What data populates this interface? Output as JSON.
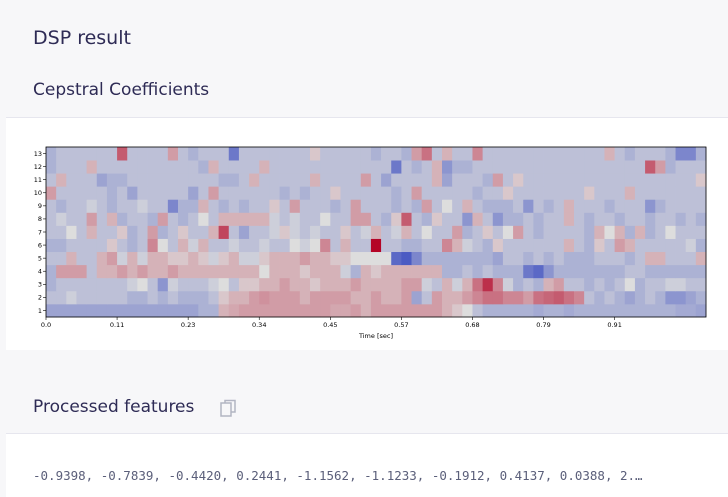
{
  "header": {
    "title": "DSP result"
  },
  "cepstral": {
    "title": "Cepstral Coefficients"
  },
  "processed": {
    "title": "Processed features",
    "copy_icon": "copy-icon",
    "values_text": "-0.9398, -0.7839, -0.4420, 0.2441, -1.1562, -1.1233, -0.1912, 0.4137, 0.0388, 2.…"
  },
  "colors": {
    "low": "#3b4cc0",
    "mid": "#dddddd",
    "high": "#b40426",
    "title": "#2e2b55"
  },
  "chart_data": {
    "type": "heatmap",
    "xlabel": "Time [sec]",
    "xticks": [
      "0.0",
      "0.11",
      "0.23",
      "0.34",
      "0.45",
      "0.57",
      "0.68",
      "0.79",
      "0.91"
    ],
    "yticks": [
      "1",
      "2",
      "3",
      "4",
      "5",
      "6",
      "7",
      "8",
      "9",
      "10",
      "11",
      "12",
      "13"
    ],
    "value_range": [
      -1,
      1
    ],
    "rows": [
      [
        -0.4,
        -0.4,
        -0.4,
        -0.4,
        -0.4,
        -0.4,
        -0.4,
        -0.4,
        -0.4,
        -0.4,
        -0.4,
        -0.4,
        -0.4,
        -0.4,
        -0.4,
        -0.3,
        -0.3,
        0.2,
        0.25,
        0.3,
        0.3,
        0.3,
        0.3,
        0.3,
        0.3,
        0.3,
        0.3,
        0.3,
        0.25,
        0.25,
        0.3,
        0.2,
        0.3,
        0.3,
        0.3,
        0.3,
        0.3,
        0.3,
        0.3,
        0.2,
        0.1,
        0.0,
        -0.2,
        -0.3,
        -0.3,
        -0.3,
        -0.3,
        -0.3,
        -0.35,
        -0.3,
        -0.3,
        -0.35,
        -0.3,
        -0.3,
        -0.3,
        -0.3,
        -0.3,
        -0.3,
        -0.3,
        -0.3,
        -0.3,
        -0.3,
        -0.35,
        -0.35,
        -0.4
      ],
      [
        -0.2,
        -0.2,
        -0.1,
        -0.2,
        -0.2,
        -0.2,
        -0.2,
        -0.2,
        -0.3,
        -0.3,
        -0.2,
        -0.3,
        -0.2,
        -0.3,
        -0.3,
        -0.3,
        -0.2,
        0.1,
        0.2,
        0.2,
        0.3,
        0.35,
        0.3,
        0.3,
        0.3,
        0.2,
        0.3,
        0.3,
        0.3,
        0.3,
        0.2,
        0.2,
        0.3,
        0.2,
        0.2,
        0.3,
        -0.4,
        -0.2,
        0.3,
        0.2,
        0.2,
        0.3,
        0.4,
        0.5,
        0.5,
        0.4,
        0.4,
        0.3,
        0.5,
        0.55,
        0.6,
        0.5,
        0.4,
        -0.2,
        -0.3,
        -0.2,
        -0.3,
        -0.4,
        -0.3,
        -0.2,
        -0.3,
        -0.5,
        -0.5,
        -0.4,
        -0.3
      ],
      [
        -0.3,
        -0.2,
        -0.2,
        -0.2,
        -0.2,
        -0.2,
        -0.2,
        -0.2,
        -0.1,
        0.0,
        -0.2,
        -0.5,
        -0.1,
        -0.2,
        -0.2,
        -0.2,
        -0.1,
        0.0,
        -0.2,
        0.1,
        0.1,
        0.2,
        0.2,
        0.3,
        0.2,
        0.2,
        0.1,
        0.2,
        0.2,
        0.2,
        0.3,
        0.2,
        0.2,
        0.2,
        0.2,
        0.3,
        0.3,
        -0.1,
        -0.2,
        0.2,
        -0.1,
        0.2,
        0.5,
        0.8,
        0.4,
        -0.1,
        -0.3,
        -0.2,
        -0.3,
        0.2,
        0.3,
        -0.2,
        -0.2,
        -0.3,
        -0.2,
        -0.3,
        -0.2,
        0.0,
        -0.3,
        -0.2,
        -0.2,
        -0.1,
        -0.1,
        -0.2,
        -0.2
      ],
      [
        -0.3,
        0.3,
        0.3,
        0.3,
        -0.2,
        0.2,
        0.2,
        0.3,
        0.2,
        0.3,
        0.2,
        0.2,
        0.3,
        0.2,
        0.2,
        0.2,
        0.2,
        0.2,
        0.2,
        0.2,
        0.2,
        0.0,
        0.2,
        0.2,
        0.2,
        0.1,
        0.2,
        0.2,
        0.2,
        -0.1,
        -0.3,
        0.2,
        0.1,
        0.2,
        0.2,
        0.2,
        0.2,
        0.2,
        0.2,
        -0.3,
        -0.3,
        -0.2,
        -0.3,
        -0.2,
        -0.3,
        -0.3,
        -0.3,
        -0.7,
        -0.8,
        -0.5,
        -0.3,
        -0.3,
        -0.3,
        -0.3,
        -0.3,
        -0.3,
        -0.3,
        -0.2,
        -0.2,
        -0.3,
        -0.3,
        -0.3,
        -0.3,
        -0.3,
        -0.3
      ],
      [
        -0.2,
        -0.2,
        0.2,
        -0.2,
        -0.2,
        0.2,
        0.3,
        -0.1,
        0.2,
        -0.1,
        0.2,
        0.2,
        0.1,
        0.1,
        0.2,
        0.1,
        -0.1,
        0.1,
        0.2,
        -0.1,
        -0.1,
        0.1,
        0.2,
        0.2,
        0.2,
        0.3,
        0.2,
        0.2,
        0.1,
        0.1,
        0.0,
        0.0,
        0.0,
        0.0,
        -0.8,
        -0.9,
        -0.6,
        -0.3,
        -0.3,
        -0.3,
        -0.3,
        -0.3,
        -0.3,
        -0.3,
        -0.4,
        -0.2,
        -0.2,
        -0.3,
        -0.2,
        -0.3,
        -0.2,
        -0.3,
        -0.3,
        -0.3,
        -0.2,
        -0.2,
        -0.2,
        -0.3,
        -0.2,
        0.2,
        0.2,
        -0.2,
        -0.2,
        -0.2,
        0.2
      ],
      [
        -0.3,
        -0.3,
        -0.2,
        -0.2,
        -0.2,
        -0.2,
        0.1,
        -0.2,
        -0.3,
        -0.2,
        0.4,
        0.0,
        -0.2,
        0.2,
        -0.1,
        0.2,
        -0.2,
        -0.2,
        -0.1,
        -0.2,
        -0.2,
        -0.1,
        -0.2,
        -0.2,
        0.0,
        -0.1,
        0.0,
        0.4,
        -0.2,
        0.2,
        -0.2,
        -0.2,
        1.0,
        -0.2,
        -0.2,
        -0.3,
        -0.3,
        -0.2,
        -0.2,
        0.4,
        0.2,
        -0.1,
        -0.2,
        -0.3,
        0.1,
        -0.2,
        -0.2,
        -0.2,
        -0.2,
        -0.2,
        -0.2,
        0.2,
        -0.2,
        -0.3,
        0.1,
        -0.2,
        0.3,
        0.2,
        -0.2,
        -0.2,
        -0.2,
        -0.2,
        -0.2,
        -0.1,
        -0.3
      ],
      [
        -0.2,
        -0.2,
        0.0,
        -0.2,
        0.2,
        -0.2,
        -0.2,
        0.1,
        -0.3,
        -0.2,
        0.3,
        -0.3,
        -0.2,
        0.1,
        -0.2,
        -0.2,
        0.2,
        0.7,
        -0.2,
        -0.4,
        -0.2,
        -0.2,
        -0.1,
        0.1,
        -0.1,
        -0.2,
        -0.1,
        -0.2,
        -0.2,
        0.1,
        -0.2,
        -0.1,
        0.2,
        -0.2,
        -0.1,
        0.2,
        -0.2,
        0.0,
        -0.2,
        -0.2,
        0.3,
        -0.3,
        -0.2,
        0.1,
        -0.2,
        0.0,
        0.3,
        -0.2,
        -0.3,
        -0.2,
        -0.2,
        -0.2,
        -0.2,
        -0.3,
        0.2,
        0.0,
        0.2,
        -0.3,
        0.2,
        -0.3,
        -0.2,
        0.0,
        -0.2,
        -0.2,
        -0.2
      ],
      [
        -0.2,
        -0.1,
        -0.2,
        -0.2,
        0.3,
        -0.2,
        0.2,
        -0.3,
        -0.2,
        -0.2,
        -0.3,
        0.3,
        -0.2,
        -0.3,
        -0.2,
        0.0,
        -0.2,
        0.2,
        0.2,
        0.2,
        0.2,
        0.2,
        -0.1,
        -0.2,
        -0.1,
        -0.2,
        -0.2,
        0.0,
        -0.2,
        -0.2,
        0.3,
        0.3,
        -0.2,
        -0.3,
        0.1,
        0.6,
        -0.2,
        -0.3,
        0.1,
        -0.2,
        -0.2,
        -0.5,
        0.2,
        -0.2,
        -0.5,
        -0.3,
        -0.3,
        -0.2,
        -0.3,
        -0.2,
        -0.2,
        0.2,
        -0.2,
        -0.3,
        -0.2,
        -0.2,
        -0.3,
        -0.2,
        -0.2,
        -0.3,
        -0.2,
        -0.2,
        -0.3,
        -0.2,
        -0.3
      ],
      [
        -0.2,
        -0.3,
        -0.2,
        -0.2,
        -0.1,
        -0.2,
        -0.3,
        -0.2,
        -0.2,
        -0.1,
        -0.2,
        -0.2,
        -0.6,
        -0.3,
        -0.3,
        0.2,
        -0.2,
        -0.3,
        -0.2,
        -0.3,
        -0.2,
        -0.2,
        0.1,
        -0.2,
        0.3,
        -0.2,
        -0.2,
        -0.2,
        -0.3,
        -0.2,
        0.3,
        -0.2,
        -0.2,
        -0.2,
        -0.3,
        -0.2,
        -0.3,
        0.3,
        -0.2,
        0.0,
        -0.2,
        0.2,
        -0.2,
        -0.3,
        -0.3,
        -0.3,
        -0.2,
        -0.5,
        -0.2,
        -0.3,
        -0.2,
        0.2,
        -0.2,
        -0.2,
        -0.2,
        -0.3,
        -0.2,
        -0.2,
        -0.2,
        -0.5,
        -0.3,
        -0.2,
        -0.2,
        -0.2,
        -0.2
      ],
      [
        0.3,
        -0.2,
        -0.2,
        -0.2,
        -0.2,
        -0.2,
        -0.3,
        -0.2,
        -0.4,
        -0.2,
        -0.2,
        -0.2,
        -0.2,
        -0.2,
        -0.4,
        -0.2,
        0.3,
        -0.2,
        -0.2,
        -0.2,
        -0.2,
        -0.2,
        -0.2,
        -0.3,
        -0.2,
        -0.3,
        -0.2,
        -0.2,
        0.1,
        -0.2,
        -0.2,
        -0.2,
        -0.2,
        -0.2,
        -0.3,
        -0.2,
        0.3,
        -0.2,
        -0.2,
        -0.2,
        -0.2,
        -0.2,
        -0.3,
        -0.2,
        -0.2,
        0.1,
        -0.2,
        -0.2,
        -0.2,
        -0.2,
        -0.2,
        -0.2,
        -0.2,
        0.1,
        -0.2,
        -0.2,
        -0.2,
        0.2,
        -0.2,
        -0.2,
        -0.2,
        -0.2,
        -0.2,
        -0.2,
        -0.2
      ],
      [
        -0.2,
        0.2,
        -0.2,
        -0.2,
        -0.2,
        -0.4,
        -0.3,
        -0.3,
        -0.2,
        -0.2,
        -0.2,
        -0.2,
        -0.2,
        -0.2,
        -0.2,
        -0.2,
        -0.2,
        -0.3,
        -0.3,
        -0.2,
        0.2,
        -0.2,
        -0.2,
        -0.2,
        -0.2,
        -0.2,
        0.2,
        -0.2,
        -0.2,
        -0.2,
        -0.2,
        0.3,
        -0.2,
        -0.4,
        -0.2,
        -0.2,
        -0.2,
        -0.2,
        0.2,
        -0.4,
        -0.2,
        -0.2,
        -0.2,
        -0.3,
        0.3,
        -0.2,
        0.1,
        -0.2,
        -0.2,
        -0.2,
        -0.2,
        -0.2,
        -0.2,
        -0.2,
        -0.2,
        -0.2,
        -0.2,
        -0.2,
        -0.2,
        -0.2,
        -0.2,
        -0.2,
        -0.2,
        -0.2,
        0.1
      ],
      [
        -0.3,
        -0.2,
        -0.2,
        -0.2,
        0.2,
        -0.2,
        -0.2,
        -0.2,
        -0.2,
        -0.2,
        -0.2,
        -0.2,
        -0.2,
        -0.2,
        -0.2,
        -0.3,
        0.2,
        -0.2,
        -0.2,
        -0.2,
        -0.2,
        0.2,
        -0.2,
        -0.2,
        -0.2,
        -0.2,
        -0.2,
        -0.2,
        -0.2,
        -0.2,
        -0.2,
        -0.2,
        -0.2,
        -0.2,
        -0.7,
        -0.2,
        -0.3,
        -0.2,
        0.2,
        -0.5,
        -0.3,
        -0.3,
        -0.2,
        -0.2,
        -0.2,
        -0.2,
        -0.2,
        -0.2,
        -0.2,
        -0.2,
        -0.2,
        -0.2,
        -0.2,
        -0.2,
        -0.2,
        -0.2,
        -0.2,
        -0.2,
        -0.2,
        0.6,
        0.3,
        -0.3,
        -0.2,
        -0.2,
        -0.2
      ],
      [
        -0.3,
        -0.2,
        -0.2,
        -0.2,
        -0.2,
        -0.2,
        -0.2,
        0.6,
        -0.2,
        -0.2,
        -0.2,
        -0.2,
        0.3,
        -0.2,
        -0.3,
        -0.2,
        -0.2,
        -0.2,
        -0.7,
        -0.2,
        -0.2,
        -0.2,
        -0.2,
        -0.2,
        -0.2,
        -0.2,
        0.1,
        -0.2,
        -0.2,
        -0.2,
        -0.2,
        -0.2,
        -0.3,
        -0.2,
        -0.2,
        -0.3,
        0.3,
        0.5,
        -0.2,
        0.2,
        -0.2,
        -0.2,
        0.4,
        -0.2,
        -0.2,
        -0.2,
        -0.2,
        -0.2,
        -0.2,
        -0.2,
        -0.2,
        -0.2,
        -0.2,
        -0.2,
        -0.2,
        0.2,
        -0.2,
        -0.3,
        -0.2,
        -0.2,
        -0.2,
        -0.3,
        -0.6,
        -0.6,
        -0.3
      ]
    ]
  }
}
